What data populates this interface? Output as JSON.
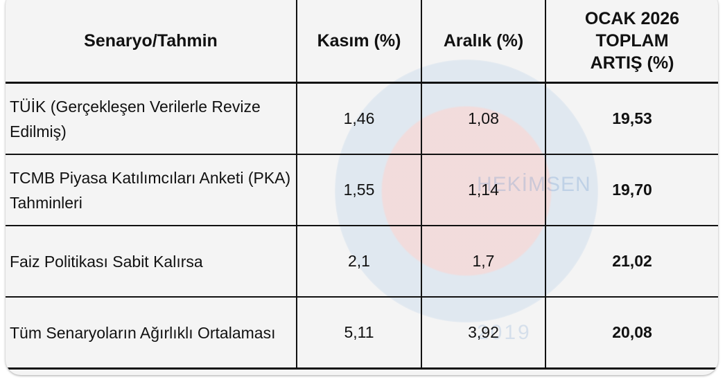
{
  "watermark": {
    "text": "HEKİMSEN",
    "year": "2019"
  },
  "table": {
    "headers": [
      "Senaryo/Tahmin",
      "Kasım (%)",
      "Aralık (%)",
      "OCAK 2026 TOPLAM ARTIŞ (%)"
    ],
    "rows": [
      {
        "scenario": "TÜİK (Gerçekleşen Verilerle Revize Edilmiş)",
        "kasim": "1,46",
        "aralik": "1,08",
        "toplam": "19,53"
      },
      {
        "scenario": "TCMB Piyasa Katılımcıları Anketi (PKA) Tahminleri",
        "kasim": "1,55",
        "aralik": "1,14",
        "toplam": "19,70"
      },
      {
        "scenario": "Faiz Politikası Sabit Kalırsa",
        "kasim": "2,1",
        "aralik": "1,7",
        "toplam": "21,02"
      },
      {
        "scenario": "Tüm Senaryoların Ağırlıklı Ortalaması",
        "kasim": "5,11",
        "aralik": "3,92",
        "toplam": "20,08"
      }
    ]
  }
}
